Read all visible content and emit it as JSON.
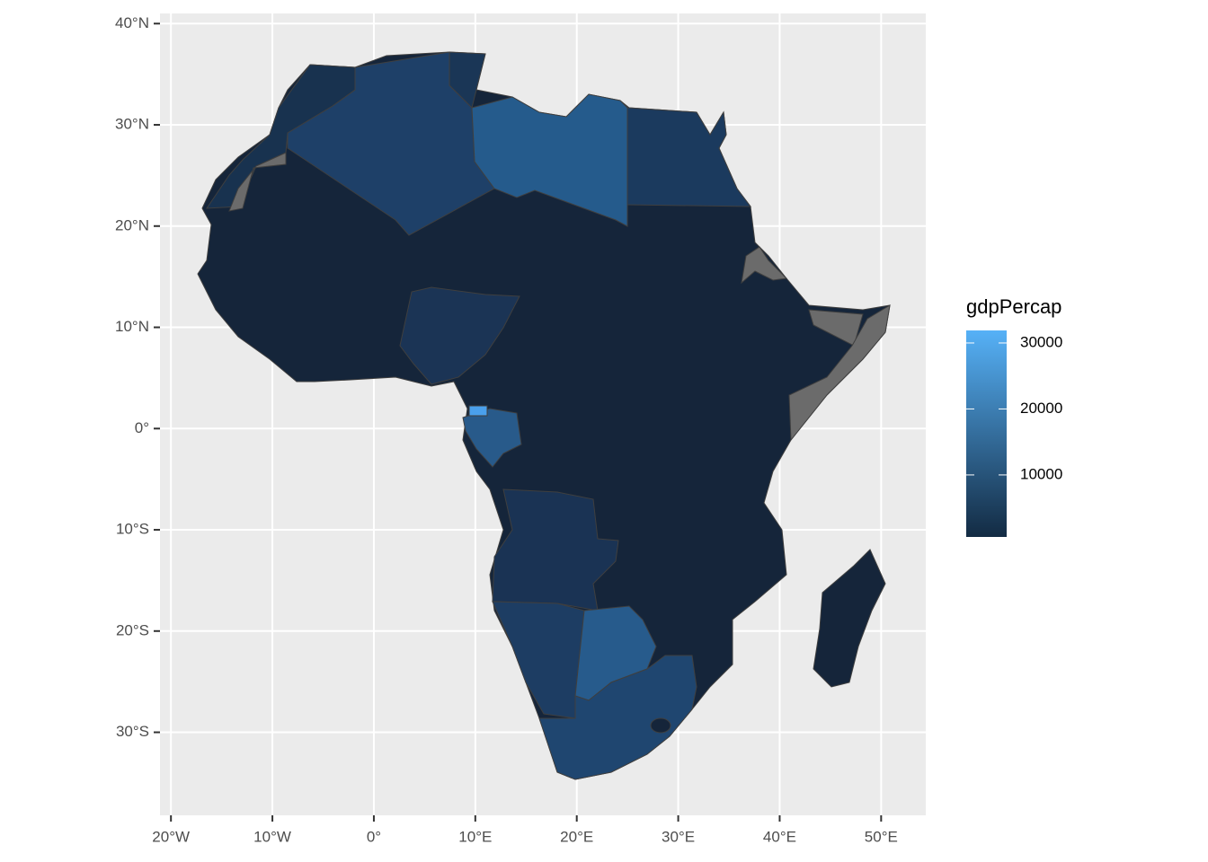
{
  "chart_data": {
    "type": "map",
    "xlim": [
      -21.08,
      54.4
    ],
    "ylim": [
      -38.2,
      41
    ],
    "xticks": [
      {
        "value": -20,
        "label": "20°W"
      },
      {
        "value": -10,
        "label": "10°W"
      },
      {
        "value": 0,
        "label": "0°"
      },
      {
        "value": 10,
        "label": "10°E"
      },
      {
        "value": 20,
        "label": "20°E"
      },
      {
        "value": 30,
        "label": "30°E"
      },
      {
        "value": 40,
        "label": "40°E"
      },
      {
        "value": 50,
        "label": "50°E"
      }
    ],
    "yticks": [
      {
        "value": 40,
        "label": "40°N"
      },
      {
        "value": 30,
        "label": "30°N"
      },
      {
        "value": 20,
        "label": "20°N"
      },
      {
        "value": 10,
        "label": "10°N"
      },
      {
        "value": 0,
        "label": "0°"
      },
      {
        "value": -10,
        "label": "10°S"
      },
      {
        "value": -20,
        "label": "20°S"
      },
      {
        "value": -30,
        "label": "30°S"
      }
    ],
    "grid": true,
    "legend": {
      "title": "gdpPercap",
      "ticks": [
        10000,
        20000,
        30000
      ],
      "limits": [
        600,
        31900
      ],
      "low_color": "#132B43",
      "high_color": "#56B1F7"
    }
  }
}
